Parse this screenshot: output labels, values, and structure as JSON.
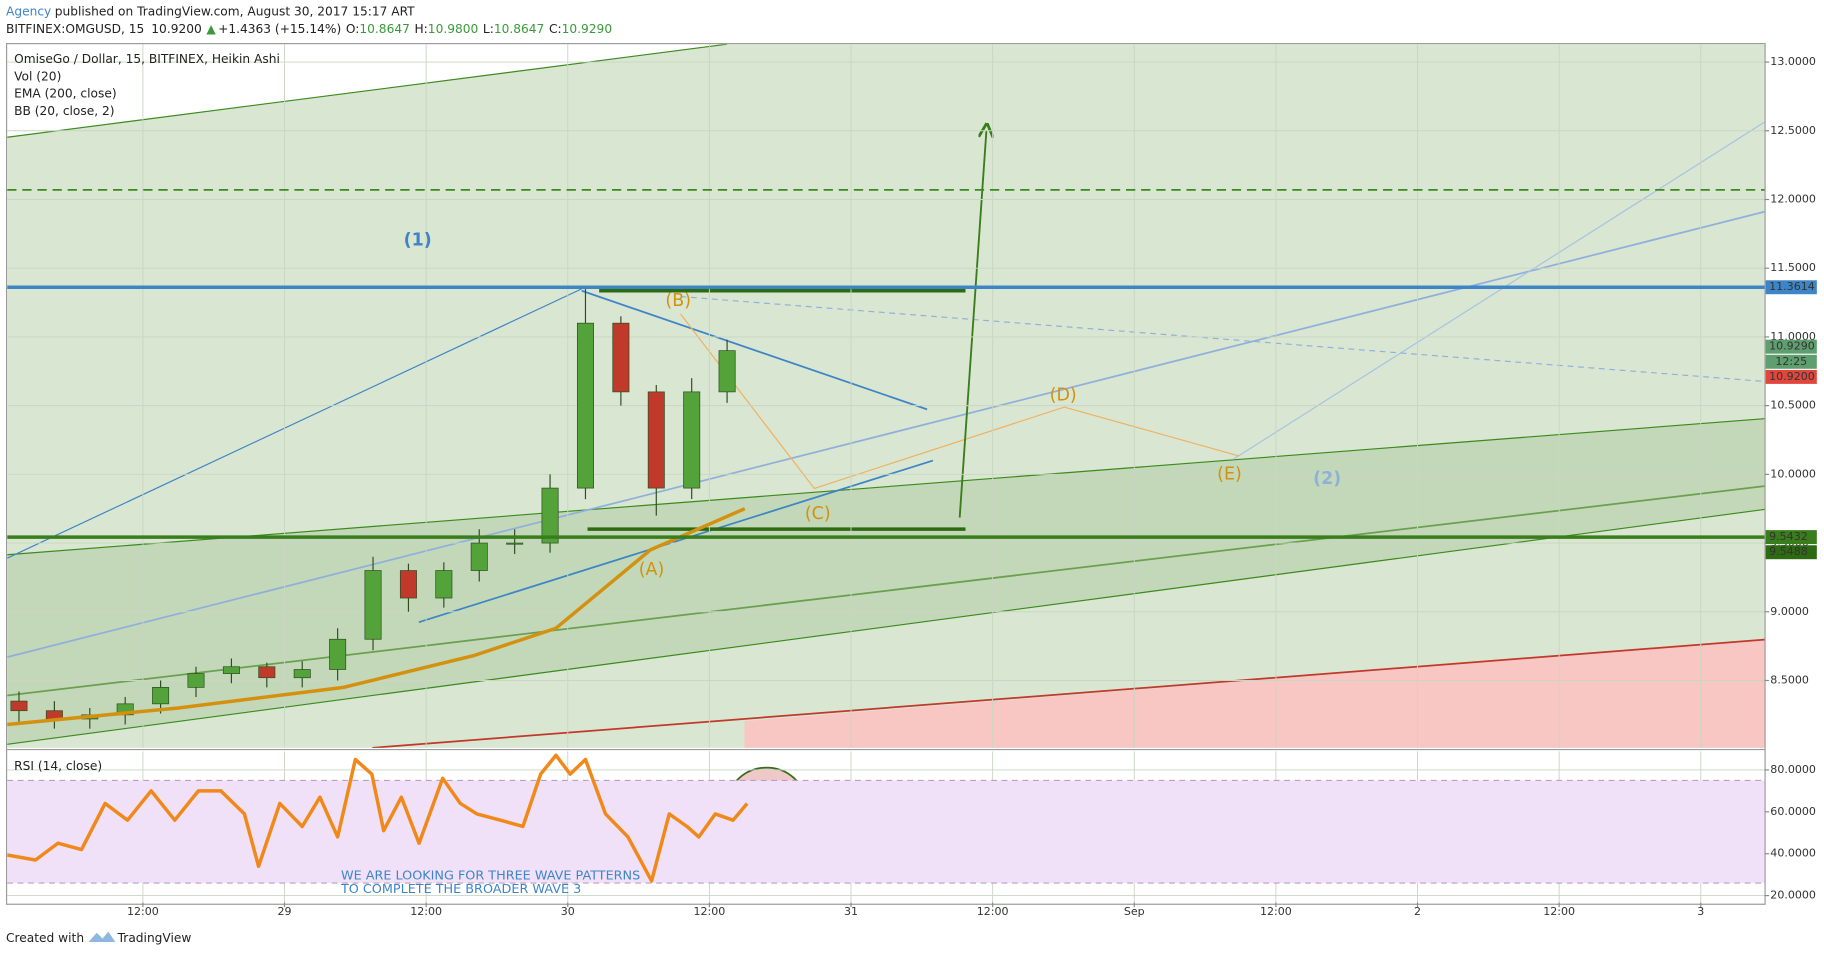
{
  "header": {
    "author": "Agency",
    "published": "published on TradingView.com, August 30, 2017 15:17 ART",
    "symbol": "BITFINEX:OMGUSD, 15",
    "last": "10.9200",
    "change": "+1.4363 (+15.14%)",
    "ohlc": [
      [
        "O:",
        "10.8647"
      ],
      [
        "H:",
        "10.9800"
      ],
      [
        "L:",
        "10.8647"
      ],
      [
        "C:",
        "10.9290"
      ]
    ]
  },
  "chart_data": [
    {
      "type": "candlestick",
      "title": "OmiseGo / Dollar, 15, BITFINEX, Heikin Ashi",
      "indicators": [
        "Vol (20)",
        "EMA (200, close)",
        "BB (20, close, 2)"
      ],
      "x": [
        1.5,
        4.5,
        7.5,
        10.5,
        13.5,
        16.5,
        19.5,
        22.5,
        25.5,
        28.5,
        31.5,
        34.5,
        37.5,
        40.5,
        43.5,
        46.5,
        49.5,
        52.5,
        55.5,
        58.5,
        61.5
      ],
      "open": [
        8.35,
        8.28,
        8.22,
        8.25,
        8.33,
        8.45,
        8.55,
        8.6,
        8.52,
        8.58,
        8.8,
        9.3,
        9.1,
        9.3,
        9.5,
        9.5,
        9.9,
        11.1,
        10.6,
        9.9,
        10.6
      ],
      "high": [
        8.42,
        8.35,
        8.3,
        8.38,
        8.5,
        8.6,
        8.66,
        8.63,
        8.64,
        8.88,
        9.4,
        9.35,
        9.36,
        9.6,
        9.6,
        10.0,
        11.35,
        11.15,
        10.65,
        10.7,
        10.98
      ],
      "low": [
        8.2,
        8.15,
        8.15,
        8.18,
        8.26,
        8.38,
        8.48,
        8.45,
        8.45,
        8.5,
        8.72,
        9.0,
        9.03,
        9.22,
        9.42,
        9.43,
        9.82,
        10.5,
        9.7,
        9.82,
        10.52
      ],
      "close": [
        8.28,
        8.22,
        8.25,
        8.33,
        8.45,
        8.55,
        8.6,
        8.52,
        8.58,
        8.8,
        9.3,
        9.1,
        9.3,
        9.5,
        9.5,
        9.9,
        11.1,
        10.6,
        9.9,
        10.6,
        10.9
      ],
      "up_color": "#53a33a",
      "down_color": "#c0392b",
      "overlays": [
        {
          "x": [
            0.5,
            15,
            29,
            40,
            47,
            55,
            63
          ],
          "values": [
            8.18,
            8.3,
            8.45,
            8.68,
            8.88,
            9.45,
            9.75
          ],
          "color": "#d4910f"
        }
      ],
      "xlim": [
        0.5,
        149.4
      ],
      "xticks": [
        {
          "value": 12,
          "label": "12:00"
        },
        {
          "value": 24,
          "label": "29"
        },
        {
          "value": 36,
          "label": "12:00"
        },
        {
          "value": 48,
          "label": "30"
        },
        {
          "value": 60,
          "label": "12:00"
        },
        {
          "value": 72,
          "label": "31"
        },
        {
          "value": 84,
          "label": "12:00"
        },
        {
          "value": 96,
          "label": "Sep"
        },
        {
          "value": 108,
          "label": "12:00"
        },
        {
          "value": 120,
          "label": "2"
        },
        {
          "value": 132,
          "label": "12:00"
        },
        {
          "value": 144,
          "label": "3"
        }
      ],
      "ylim": [
        8.01,
        13.13
      ],
      "yticks": [
        {
          "value": 8.5,
          "label": "8.5000"
        },
        {
          "value": 9,
          "label": "9.0000"
        },
        {
          "value": 9.5,
          "label": "9.5000"
        },
        {
          "value": 10,
          "label": "10.0000"
        },
        {
          "value": 10.5,
          "label": "10.5000"
        },
        {
          "value": 11,
          "label": "11.0000"
        },
        {
          "value": 11.5,
          "label": "11.5000"
        },
        {
          "value": 12,
          "label": "12.0000"
        },
        {
          "value": 12.5,
          "label": "12.5000"
        },
        {
          "value": 13,
          "label": "13.0000"
        }
      ],
      "grid": true,
      "levels": [
        {
          "value": 12.07,
          "color": "#3a8a1c"
        }
      ],
      "price_tags": [
        {
          "value": 11.3614,
          "label": "11.3614",
          "color": "#3d85c6",
          "line": true
        },
        {
          "value": 10.929,
          "label": "10.9290",
          "color": "#5f9e6e",
          "line": false
        },
        {
          "value": 10.92,
          "label": "10.9200",
          "color": "#e0463b",
          "line": false
        },
        {
          "value": 9.5432,
          "label": "9.5432",
          "color": "#3a7d1c",
          "line": true
        },
        {
          "value": 9.5488,
          "label": "9.5488",
          "color": "#2d6b12",
          "line": false
        }
      ],
      "countdown": "12:25",
      "annotations": [
        "(1)",
        "(2)",
        "(A)",
        "(B)",
        "(C)",
        "(D)",
        "(E)"
      ]
    },
    {
      "type": "line",
      "title": "RSI (14, close)",
      "x": [
        0.5,
        2.9,
        4.8,
        6.8,
        8.8,
        10.7,
        12.7,
        14.7,
        16.7,
        18.6,
        20.6,
        21.8,
        23.6,
        25.5,
        27.0,
        28.5,
        30.0,
        31.4,
        32.4,
        33.9,
        35.4,
        37.4,
        38.9,
        40.3,
        42.3,
        44.2,
        45.7,
        47.0,
        48.2,
        49.5,
        51.2,
        53.1,
        55.1,
        56.6,
        58.1,
        59.1,
        60.5,
        62.0,
        63.2
      ],
      "values": [
        39.4,
        37,
        45,
        42,
        64,
        56,
        70,
        56,
        70,
        70,
        59,
        34,
        64,
        53,
        67,
        48,
        85,
        78,
        51,
        67,
        45,
        76,
        64,
        59,
        56,
        53,
        78,
        87,
        78,
        85,
        59,
        48,
        27,
        59,
        53,
        48,
        59,
        56,
        64
      ],
      "color": "#f0891a",
      "band": [
        75,
        26
      ],
      "xlim": [
        0.5,
        149.4
      ],
      "xticks": [
        {
          "value": 12,
          "label": "12:00"
        },
        {
          "value": 24,
          "label": "29"
        },
        {
          "value": 36,
          "label": "12:00"
        },
        {
          "value": 48,
          "label": "30"
        },
        {
          "value": 60,
          "label": "12:00"
        },
        {
          "value": 72,
          "label": "31"
        },
        {
          "value": 84,
          "label": "12:00"
        },
        {
          "value": 96,
          "label": "Sep"
        },
        {
          "value": 108,
          "label": "12:00"
        },
        {
          "value": 120,
          "label": "2"
        },
        {
          "value": 132,
          "label": "12:00"
        },
        {
          "value": 144,
          "label": "3"
        }
      ],
      "ylim": [
        16.7,
        88.9
      ],
      "yticks": [
        {
          "value": 20,
          "label": "20.0000"
        },
        {
          "value": 40,
          "label": "40.0000"
        },
        {
          "value": 60,
          "label": "60.0000"
        },
        {
          "value": 80,
          "label": "80.0000"
        }
      ],
      "grid": true,
      "annotations": [
        "WE ARE LOOKING FOR THREE WAVE PATTERNS",
        "TO COMPLETE THE BROADER WAVE 3"
      ]
    }
  ],
  "footer": {
    "created": "Created with",
    "brand": "TradingView"
  }
}
